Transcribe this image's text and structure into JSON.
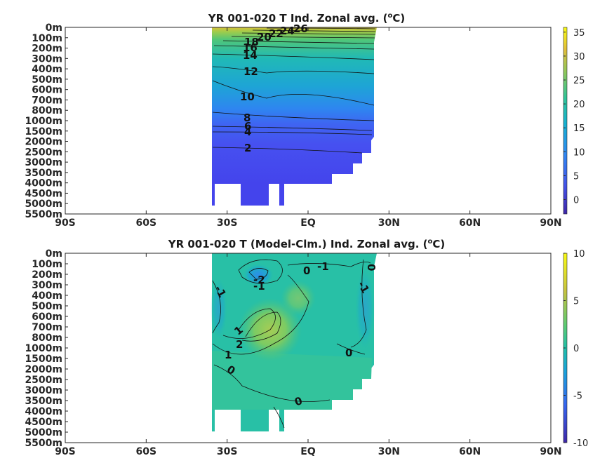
{
  "chart_data": [
    {
      "type": "heatmap",
      "title": "YR 001-020 T Ind. Zonal avg. (",
      "title_unit": "o",
      "title_end": "C)",
      "x_ticks": [
        "90S",
        "60S",
        "30S",
        "EQ",
        "30N",
        "60N",
        "90N"
      ],
      "x_values": [
        -90,
        -60,
        -30,
        0,
        30,
        60,
        90
      ],
      "y_ticks": [
        "0m",
        "100m",
        "200m",
        "300m",
        "400m",
        "500m",
        "600m",
        "700m",
        "800m",
        "1000m",
        "1500m",
        "2000m",
        "2500m",
        "3000m",
        "3500m",
        "4000m",
        "4500m",
        "5000m",
        "5500m"
      ],
      "colorbar": {
        "ticks": [
          "35",
          "30",
          "25",
          "20",
          "15",
          "10",
          "5",
          "0"
        ],
        "min": -3,
        "max": 36
      },
      "contour_labels": [
        "26",
        "24",
        "22",
        "20",
        "18",
        "16",
        "14",
        "12",
        "10",
        "8",
        "6",
        "4",
        "2"
      ],
      "field": {
        "lat_range": [
          -34,
          26
        ],
        "surface_max": 30,
        "deep_min": 1.5
      }
    },
    {
      "type": "heatmap",
      "title": "YR 001-020 T (Model-Clm.) Ind. Zonal avg. (",
      "title_unit": "o",
      "title_end": "C)",
      "x_ticks": [
        "90S",
        "60S",
        "30S",
        "EQ",
        "30N",
        "60N",
        "90N"
      ],
      "x_values": [
        -90,
        -60,
        -30,
        0,
        30,
        60,
        90
      ],
      "y_ticks": [
        "0m",
        "100m",
        "200m",
        "300m",
        "400m",
        "500m",
        "600m",
        "700m",
        "800m",
        "1000m",
        "1500m",
        "2000m",
        "2500m",
        "3000m",
        "3500m",
        "4000m",
        "4500m",
        "5000m",
        "5500m"
      ],
      "colorbar": {
        "ticks": [
          "10",
          "5",
          "0",
          "-5",
          "-10"
        ],
        "min": -10,
        "max": 10
      },
      "contour_labels": [
        "-2",
        "-1",
        "0",
        "-1",
        "0",
        "-1",
        "-1",
        "1",
        "2",
        "1",
        "0",
        "0",
        "0"
      ]
    }
  ]
}
